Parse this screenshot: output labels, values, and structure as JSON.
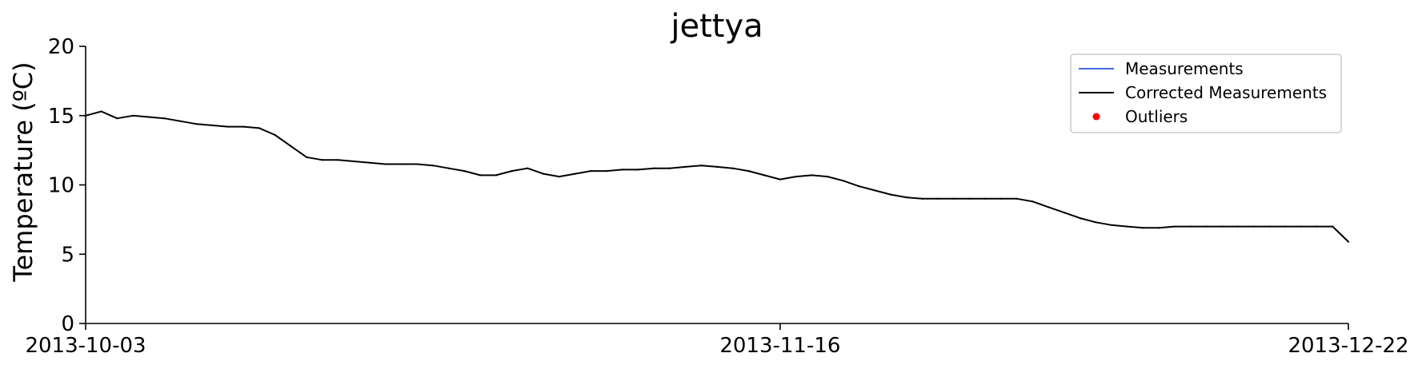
{
  "chart_data": {
    "type": "line",
    "title": "jettya",
    "xlabel": "",
    "ylabel": "Temperature (ºC)",
    "x_range": [
      "2013-10-03",
      "2013-12-22"
    ],
    "ylim": [
      0,
      20
    ],
    "yticks": [
      0,
      5,
      10,
      15,
      20
    ],
    "xticks": [
      "2013-10-03",
      "2013-11-16",
      "2013-12-22"
    ],
    "grid": false,
    "legend_placement": "top-right",
    "legend": [
      {
        "label": "Measurements",
        "style": "line",
        "color": "#4169e1"
      },
      {
        "label": "Corrected Measurements",
        "style": "line",
        "color": "#000000"
      },
      {
        "label": "Outliers",
        "style": "marker",
        "color": "#ff0000"
      }
    ],
    "series": [
      {
        "name": "Corrected Measurements",
        "color": "#000000",
        "points": [
          [
            "2013-10-03",
            15.0
          ],
          [
            "2013-10-04",
            15.3
          ],
          [
            "2013-10-05",
            14.8
          ],
          [
            "2013-10-06",
            15.0
          ],
          [
            "2013-10-07",
            14.9
          ],
          [
            "2013-10-08",
            14.8
          ],
          [
            "2013-10-09",
            14.6
          ],
          [
            "2013-10-10",
            14.4
          ],
          [
            "2013-10-11",
            14.3
          ],
          [
            "2013-10-12",
            14.2
          ],
          [
            "2013-10-13",
            14.2
          ],
          [
            "2013-10-14",
            14.1
          ],
          [
            "2013-10-15",
            13.6
          ],
          [
            "2013-10-16",
            12.8
          ],
          [
            "2013-10-17",
            12.0
          ],
          [
            "2013-10-18",
            11.8
          ],
          [
            "2013-10-19",
            11.8
          ],
          [
            "2013-10-20",
            11.7
          ],
          [
            "2013-10-21",
            11.6
          ],
          [
            "2013-10-22",
            11.5
          ],
          [
            "2013-10-23",
            11.5
          ],
          [
            "2013-10-24",
            11.5
          ],
          [
            "2013-10-25",
            11.4
          ],
          [
            "2013-10-26",
            11.2
          ],
          [
            "2013-10-27",
            11.0
          ],
          [
            "2013-10-28",
            10.7
          ],
          [
            "2013-10-29",
            10.7
          ],
          [
            "2013-10-30",
            11.0
          ],
          [
            "2013-10-31",
            11.2
          ],
          [
            "2013-11-01",
            10.8
          ],
          [
            "2013-11-02",
            10.6
          ],
          [
            "2013-11-03",
            10.8
          ],
          [
            "2013-11-04",
            11.0
          ],
          [
            "2013-11-05",
            11.0
          ],
          [
            "2013-11-06",
            11.1
          ],
          [
            "2013-11-07",
            11.1
          ],
          [
            "2013-11-08",
            11.2
          ],
          [
            "2013-11-09",
            11.2
          ],
          [
            "2013-11-10",
            11.3
          ],
          [
            "2013-11-11",
            11.4
          ],
          [
            "2013-11-12",
            11.3
          ],
          [
            "2013-11-13",
            11.2
          ],
          [
            "2013-11-14",
            11.0
          ],
          [
            "2013-11-15",
            10.7
          ],
          [
            "2013-11-16",
            10.4
          ],
          [
            "2013-11-17",
            10.6
          ],
          [
            "2013-11-18",
            10.7
          ],
          [
            "2013-11-19",
            10.6
          ],
          [
            "2013-11-20",
            10.3
          ],
          [
            "2013-11-21",
            9.9
          ],
          [
            "2013-11-22",
            9.6
          ],
          [
            "2013-11-23",
            9.3
          ],
          [
            "2013-11-24",
            9.1
          ],
          [
            "2013-11-25",
            9.0
          ],
          [
            "2013-11-26",
            9.0
          ],
          [
            "2013-11-27",
            9.0
          ],
          [
            "2013-11-28",
            9.0
          ],
          [
            "2013-11-29",
            9.0
          ],
          [
            "2013-11-30",
            9.0
          ],
          [
            "2013-12-01",
            9.0
          ],
          [
            "2013-12-02",
            8.8
          ],
          [
            "2013-12-03",
            8.4
          ],
          [
            "2013-12-04",
            8.0
          ],
          [
            "2013-12-05",
            7.6
          ],
          [
            "2013-12-06",
            7.3
          ],
          [
            "2013-12-07",
            7.1
          ],
          [
            "2013-12-08",
            7.0
          ],
          [
            "2013-12-09",
            6.9
          ],
          [
            "2013-12-10",
            6.9
          ],
          [
            "2013-12-11",
            7.0
          ],
          [
            "2013-12-12",
            7.0
          ],
          [
            "2013-12-13",
            7.0
          ],
          [
            "2013-12-14",
            7.0
          ],
          [
            "2013-12-15",
            7.0
          ],
          [
            "2013-12-16",
            7.0
          ],
          [
            "2013-12-17",
            7.0
          ],
          [
            "2013-12-18",
            7.0
          ],
          [
            "2013-12-19",
            7.0
          ],
          [
            "2013-12-20",
            7.0
          ],
          [
            "2013-12-21",
            7.0
          ],
          [
            "2013-12-22",
            5.9
          ]
        ]
      }
    ]
  }
}
